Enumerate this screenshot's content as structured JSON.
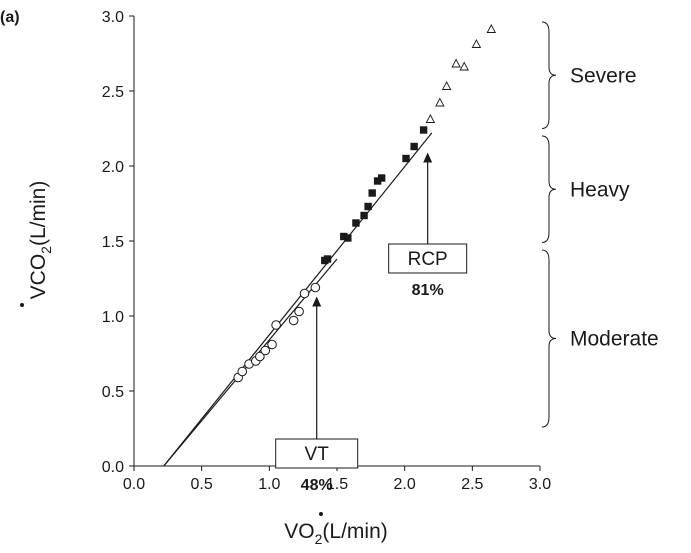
{
  "chart_data": {
    "type": "scatter",
    "panel_label": "(a)",
    "xlabel": {
      "prefix": "V",
      "main": "O",
      "sub": "2",
      "unit": "(L/min)"
    },
    "ylabel": {
      "prefix": "V",
      "main": "CO",
      "sub": "2",
      "unit": "(L/min)"
    },
    "xlim": [
      0.0,
      3.0
    ],
    "ylim": [
      0.0,
      3.0
    ],
    "xticks": [
      "0.0",
      "0.5",
      "1.0",
      "1.5",
      "2.0",
      "2.5",
      "3.0"
    ],
    "yticks": [
      "0.0",
      "0.5",
      "1.0",
      "1.5",
      "2.0",
      "2.5",
      "3.0"
    ],
    "grid": false,
    "series": [
      {
        "marker": "open-circle",
        "x": [
          0.77,
          0.8,
          0.85,
          0.9,
          0.93,
          0.97,
          1.02,
          1.05,
          1.18,
          1.22,
          1.26,
          1.34
        ],
        "y": [
          0.59,
          0.63,
          0.68,
          0.7,
          0.73,
          0.77,
          0.81,
          0.94,
          0.97,
          1.03,
          1.15,
          1.19
        ]
      },
      {
        "marker": "filled-square",
        "x": [
          1.41,
          1.43,
          1.55,
          1.58,
          1.64,
          1.7,
          1.73,
          1.76,
          1.8,
          1.83,
          2.01,
          2.07,
          2.14
        ],
        "y": [
          1.37,
          1.38,
          1.53,
          1.52,
          1.62,
          1.67,
          1.73,
          1.82,
          1.9,
          1.92,
          2.05,
          2.13,
          2.24
        ]
      },
      {
        "marker": "open-triangle",
        "x": [
          2.19,
          2.26,
          2.31,
          2.38,
          2.44,
          2.53,
          2.64
        ],
        "y": [
          2.31,
          2.42,
          2.53,
          2.68,
          2.66,
          2.81,
          2.91
        ]
      }
    ],
    "fit_lines": [
      {
        "x": [
          0.22,
          1.5
        ],
        "y": [
          0.0,
          1.38
        ]
      },
      {
        "x": [
          0.22,
          2.2
        ],
        "y": [
          0.0,
          2.22
        ]
      }
    ],
    "annotations": [
      {
        "label": "VT",
        "value": "48%",
        "arrow_x": 1.35,
        "arrow_y_from": 0.18,
        "arrow_y_to": 1.13
      },
      {
        "label": "RCP",
        "value": "81%",
        "arrow_x": 2.17,
        "arrow_y_from": 1.48,
        "arrow_y_to": 2.09
      }
    ],
    "zones": [
      {
        "label": "Severe",
        "y_from": 2.25,
        "y_to": 2.96
      },
      {
        "label": "Heavy",
        "y_from": 1.49,
        "y_to": 2.2
      },
      {
        "label": "Moderate",
        "y_from": 0.26,
        "y_to": 1.44
      }
    ]
  }
}
